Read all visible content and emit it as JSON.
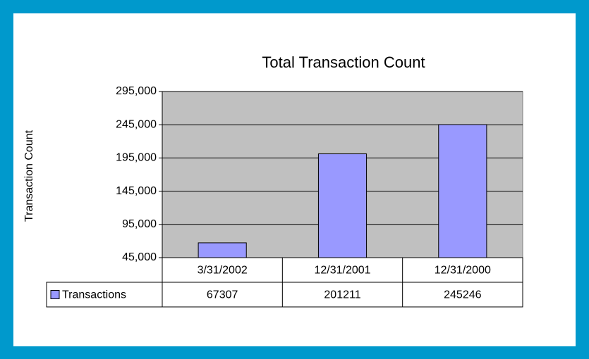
{
  "chart_data": {
    "type": "bar",
    "title": "Total Transaction Count",
    "y_label": "Transaction Count",
    "categories": [
      "3/31/2002",
      "12/31/2001",
      "12/31/2000"
    ],
    "series": [
      {
        "name": "Transactions",
        "color": "#9999ff",
        "values": [
          67307,
          201211,
          245246
        ]
      }
    ],
    "ylim": [
      45000,
      295000
    ],
    "yticks": [
      {
        "value": 45000,
        "label": "45,000"
      },
      {
        "value": 95000,
        "label": "95,000"
      },
      {
        "value": 145000,
        "label": "145,000"
      },
      {
        "value": 195000,
        "label": "195,000"
      },
      {
        "value": 245000,
        "label": "245,000"
      },
      {
        "value": 295000,
        "label": "295,000"
      }
    ],
    "grid": true,
    "data_table": true,
    "plot_background": "#c0c0c0"
  }
}
